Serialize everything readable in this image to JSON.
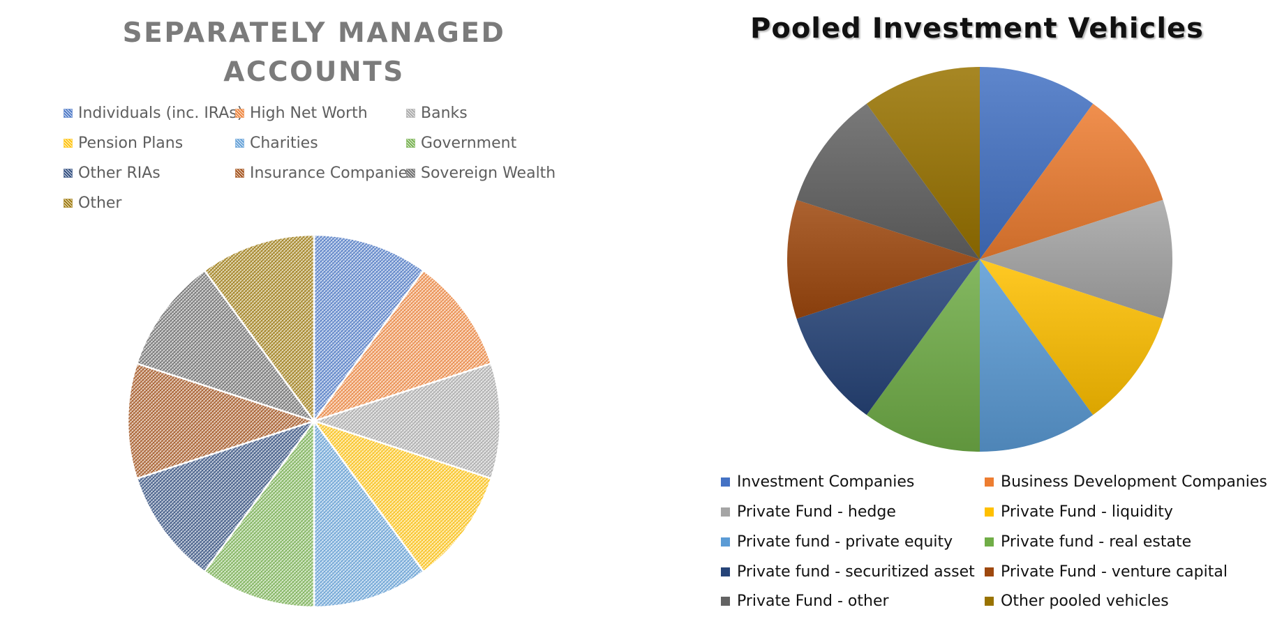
{
  "charts": {
    "left": {
      "title_line1": "SEPARATELY MANAGED",
      "title_line2": "ACCOUNTS"
    },
    "right": {
      "title": "Pooled Investment Vehicles"
    }
  },
  "chart_data": [
    {
      "type": "pie",
      "title": "SEPARATELY MANAGED ACCOUNTS",
      "fill_style": "hatched pattern",
      "legend_position": "top",
      "categories": [
        "Individuals (inc. IRAs)",
        "High Net Worth",
        "Banks",
        "Pension Plans",
        "Charities",
        "Government",
        "Other RIAs",
        "Insurance Companies",
        "Sovereign Wealth",
        "Other"
      ],
      "values": [
        1,
        1,
        1,
        1,
        1,
        1,
        1,
        1,
        1,
        1
      ],
      "colors": [
        "#4472c4",
        "#ed7d31",
        "#a5a5a5",
        "#ffc000",
        "#5b9bd5",
        "#70ad47",
        "#264478",
        "#9e480e",
        "#636363",
        "#997300"
      ]
    },
    {
      "type": "pie",
      "title": "Pooled Investment Vehicles",
      "fill_style": "gradient",
      "legend_position": "bottom",
      "categories": [
        "Investment Companies",
        "Business Development Companies",
        "Private Fund - hedge",
        "Private Fund - liquidity",
        "Private fund - private equity",
        "Private fund - real estate",
        "Private fund - securitized asset",
        "Private Fund - venture capital",
        "Private Fund - other",
        "Other pooled vehicles"
      ],
      "values": [
        1,
        1,
        1,
        1,
        1,
        1,
        1,
        1,
        1,
        1
      ],
      "colors": [
        "#4472c4",
        "#ed7d31",
        "#a5a5a5",
        "#ffc000",
        "#5b9bd5",
        "#70ad47",
        "#264478",
        "#9e480e",
        "#636363",
        "#997300"
      ]
    }
  ]
}
